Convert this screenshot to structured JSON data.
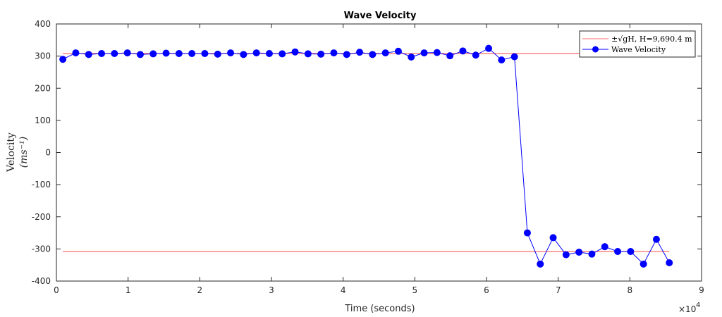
{
  "chart_data": {
    "type": "line",
    "title": "Wave Velocity",
    "xlabel": "Time (seconds)",
    "ylabel_line1": "Velocity",
    "ylabel_line2": "(ms⁻¹)",
    "x_multiplier_base": "×10",
    "x_multiplier_exp": "4",
    "xlim": [
      0,
      9
    ],
    "ylim": [
      -400,
      400
    ],
    "x_ticks": [
      "0",
      "1",
      "2",
      "3",
      "4",
      "5",
      "6",
      "7",
      "8",
      "9"
    ],
    "y_ticks": [
      "400",
      "300",
      "200",
      "100",
      "0",
      "-100",
      "-200",
      "-300",
      "-400"
    ],
    "grid": false,
    "legend_position": "top-right",
    "series": [
      {
        "name": "±√gH, H=9,690.4 m",
        "color": "#ff6b6b",
        "segments": [
          [
            [
              0.09,
              308.3
            ],
            [
              8.55,
              308.3
            ]
          ],
          [
            [
              0.09,
              -308.3
            ],
            [
              8.55,
              -308.3
            ]
          ]
        ]
      },
      {
        "name": "Wave Velocity",
        "color": "#0000ff",
        "x": [
          0.09,
          0.27,
          0.45,
          0.63,
          0.81,
          0.99,
          1.17,
          1.35,
          1.53,
          1.71,
          1.89,
          2.07,
          2.25,
          2.43,
          2.61,
          2.79,
          2.97,
          3.15,
          3.33,
          3.51,
          3.69,
          3.87,
          4.05,
          4.23,
          4.41,
          4.59,
          4.77,
          4.95,
          5.13,
          5.31,
          5.49,
          5.67,
          5.85,
          6.03,
          6.21,
          6.39,
          6.57,
          6.75,
          6.93,
          7.11,
          7.29,
          7.47,
          7.65,
          7.83,
          8.01,
          8.19,
          8.37,
          8.55
        ],
        "y": [
          290,
          310,
          305,
          308,
          308,
          310,
          305,
          307,
          309,
          308,
          308,
          308,
          306,
          310,
          305,
          310,
          308,
          307,
          313,
          307,
          306,
          310,
          305,
          312,
          305,
          310,
          315,
          297,
          310,
          311,
          301,
          316,
          303,
          324,
          288,
          298,
          -250,
          -347,
          -265,
          -318,
          -310,
          -316,
          -293,
          -308,
          -308,
          -347,
          -270,
          -343
        ]
      }
    ]
  }
}
